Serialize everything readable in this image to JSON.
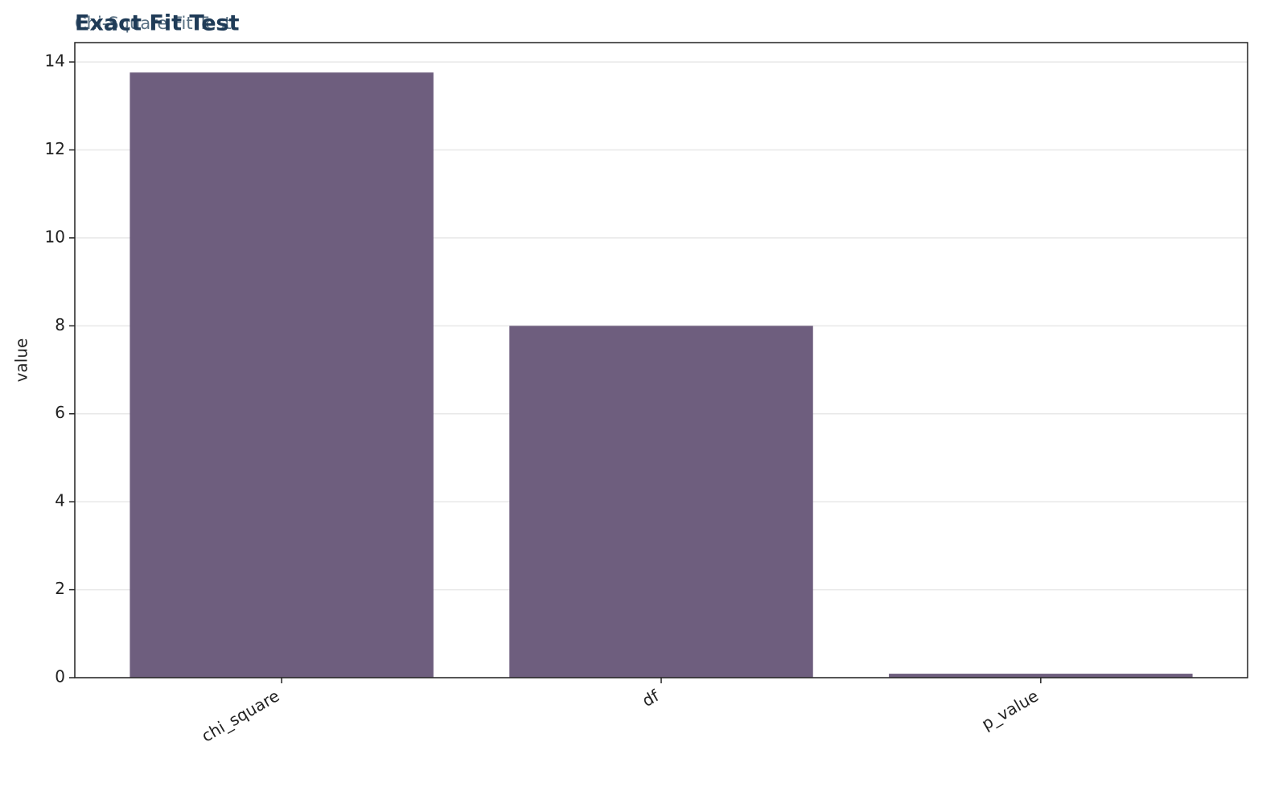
{
  "chart_data": {
    "type": "bar",
    "title": "Exact Fit Test",
    "subtitle": "Chi-Square Fit Test",
    "y_label": "value",
    "categories": [
      "chi_square",
      "df",
      "p_value"
    ],
    "values": [
      13.76,
      8,
      0.09
    ],
    "color": "#6b5b7b",
    "ylim": [
      0,
      14.44
    ],
    "yticks": [
      0,
      2,
      4,
      6,
      8,
      10,
      12,
      14
    ],
    "grid": true
  }
}
